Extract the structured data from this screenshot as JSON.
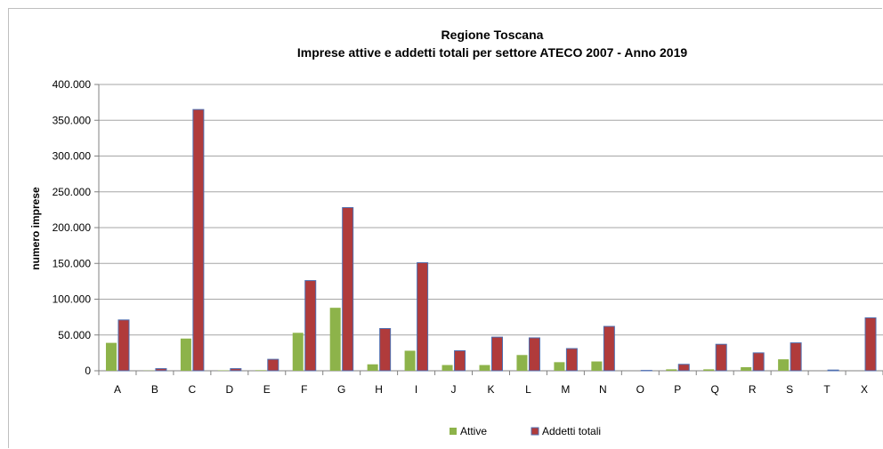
{
  "chart_data": {
    "type": "bar",
    "title": "Regione Toscana",
    "subtitle": "Imprese attive e addetti totali per settore ATECO 2007 - Anno 2019",
    "ylabel": "numero imprese",
    "xlabel": "",
    "ylim": [
      0,
      400000
    ],
    "yticks": [
      "0",
      "50.000",
      "100.000",
      "150.000",
      "200.000",
      "250.000",
      "300.000",
      "350.000",
      "400.000"
    ],
    "grid": true,
    "legend_position": "bottom",
    "categories": [
      "A",
      "B",
      "C",
      "D",
      "E",
      "F",
      "G",
      "H",
      "I",
      "J",
      "K",
      "L",
      "M",
      "N",
      "O",
      "P",
      "Q",
      "R",
      "S",
      "T",
      "X"
    ],
    "series": [
      {
        "name": "Attive",
        "color": "#8db34a",
        "values": [
          39000,
          300,
          45000,
          600,
          800,
          53000,
          88000,
          9000,
          28000,
          8000,
          8000,
          22000,
          12000,
          13000,
          0,
          2000,
          2000,
          5000,
          16000,
          0,
          0
        ]
      },
      {
        "name": "Addetti totali",
        "color": "#b03b3b",
        "values": [
          71000,
          3000,
          365000,
          3000,
          16000,
          126000,
          228000,
          59000,
          151000,
          28000,
          47000,
          46000,
          31000,
          62000,
          500,
          9000,
          37000,
          25000,
          39000,
          1000,
          74000
        ]
      }
    ]
  }
}
